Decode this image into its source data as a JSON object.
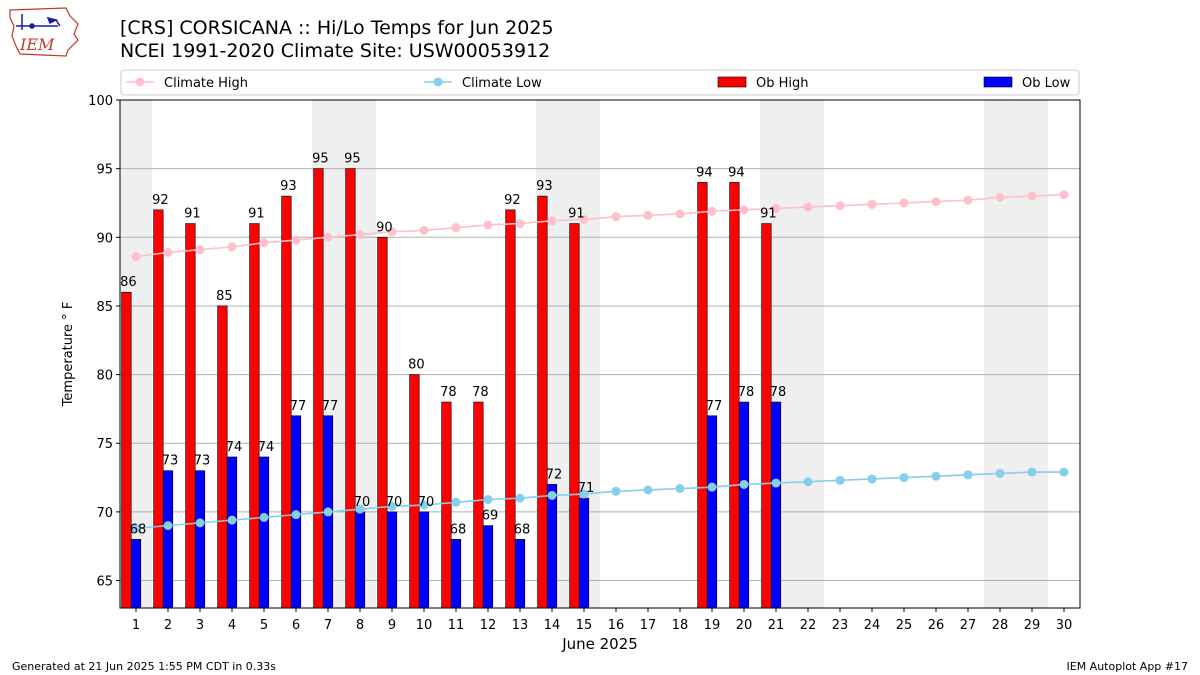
{
  "header": {
    "title_line1": "[CRS] CORSICANA :: Hi/Lo Temps for Jun 2025",
    "title_line2": "NCEI 1991-2020 Climate Site: USW00053912",
    "logo_text": "IEM"
  },
  "footer": {
    "generated": "Generated at 21 Jun 2025 1:55 PM CDT in 0.33s",
    "app": "IEM Autoplot App #17"
  },
  "colors": {
    "climate_high": "#ffc0cb",
    "climate_low": "#87ceeb",
    "ob_high": "#ff0000",
    "ob_low": "#0000ff",
    "weekend_shade": "#efefef",
    "grid": "#b0b0b0"
  },
  "chart_data": {
    "type": "bar",
    "xlabel": "June 2025",
    "ylabel": "Temperature $^\\circ$F",
    "ylabel_display": "Temperature ° F",
    "ylim": [
      63,
      100
    ],
    "yticks": [
      65,
      70,
      75,
      80,
      85,
      90,
      95,
      100
    ],
    "grid": "horizontal",
    "legend_placement": "top",
    "categories": [
      1,
      2,
      3,
      4,
      5,
      6,
      7,
      8,
      9,
      10,
      11,
      12,
      13,
      14,
      15,
      16,
      17,
      18,
      19,
      20,
      21,
      22,
      23,
      24,
      25,
      26,
      27,
      28,
      29,
      30
    ],
    "weekend_days": [
      1,
      7,
      8,
      14,
      15,
      21,
      22,
      28,
      29
    ],
    "series": [
      {
        "name": "Climate High",
        "kind": "line",
        "values": [
          88.6,
          88.9,
          89.1,
          89.3,
          89.6,
          89.8,
          90.0,
          90.2,
          90.4,
          90.5,
          90.7,
          90.9,
          91.0,
          91.2,
          91.3,
          91.5,
          91.6,
          91.7,
          91.9,
          92.0,
          92.1,
          92.2,
          92.3,
          92.4,
          92.5,
          92.6,
          92.7,
          92.9,
          93.0,
          93.1
        ]
      },
      {
        "name": "Climate Low",
        "kind": "line",
        "values": [
          68.8,
          69.0,
          69.2,
          69.4,
          69.6,
          69.8,
          70.0,
          70.2,
          70.4,
          70.5,
          70.7,
          70.9,
          71.0,
          71.2,
          71.3,
          71.5,
          71.6,
          71.7,
          71.8,
          72.0,
          72.1,
          72.2,
          72.3,
          72.4,
          72.5,
          72.6,
          72.7,
          72.8,
          72.9,
          72.9
        ]
      },
      {
        "name": "Ob High",
        "kind": "bar",
        "values": [
          86,
          92,
          91,
          85,
          91,
          93,
          95,
          95,
          90,
          80,
          78,
          78,
          92,
          93,
          91,
          null,
          null,
          null,
          94,
          94,
          91,
          null,
          null,
          null,
          null,
          null,
          null,
          null,
          null,
          null
        ]
      },
      {
        "name": "Ob Low",
        "kind": "bar",
        "values": [
          68,
          73,
          73,
          74,
          74,
          77,
          77,
          70,
          70,
          70,
          68,
          69,
          68,
          72,
          71,
          null,
          null,
          null,
          77,
          78,
          78,
          null,
          null,
          null,
          null,
          null,
          null,
          null,
          null,
          null
        ]
      }
    ]
  }
}
